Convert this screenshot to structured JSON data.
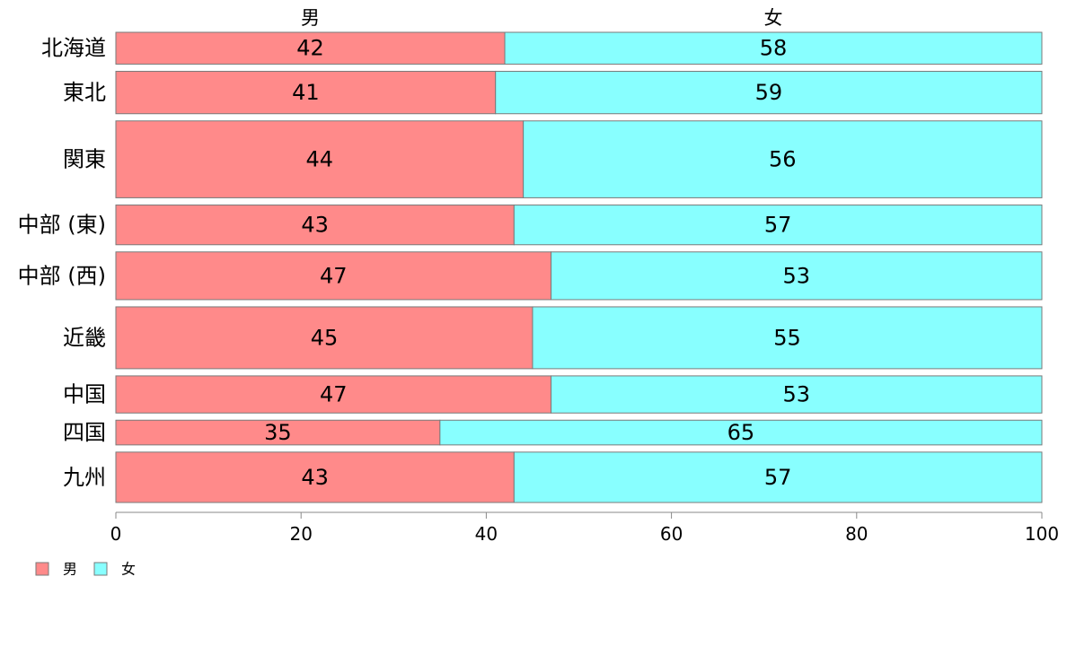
{
  "chart_data": {
    "type": "bar",
    "orientation": "horizontal",
    "stacked": true,
    "categories": [
      "北海道",
      "東北",
      "関東",
      "中部 (東)",
      "中部 (西)",
      "近畿",
      "中国",
      "四国",
      "九州"
    ],
    "series": [
      {
        "name": "男",
        "values": [
          42,
          41,
          44,
          43,
          47,
          45,
          47,
          35,
          43
        ],
        "color": "#ff8a8a"
      },
      {
        "name": "女",
        "values": [
          58,
          59,
          56,
          57,
          53,
          55,
          53,
          65,
          57
        ],
        "color": "#88ffff"
      }
    ],
    "bar_widths_relative": [
      36,
      48,
      87,
      45,
      54,
      70,
      42,
      28,
      57
    ],
    "column_headers": [
      "男",
      "女"
    ],
    "xlim": [
      0,
      100
    ],
    "xticks": [
      0,
      20,
      40,
      60,
      80,
      100
    ],
    "xlabel": "",
    "ylabel": "",
    "title": "",
    "grid": false,
    "legend": {
      "position": "bottom-left",
      "entries": [
        "男",
        "女"
      ]
    }
  }
}
